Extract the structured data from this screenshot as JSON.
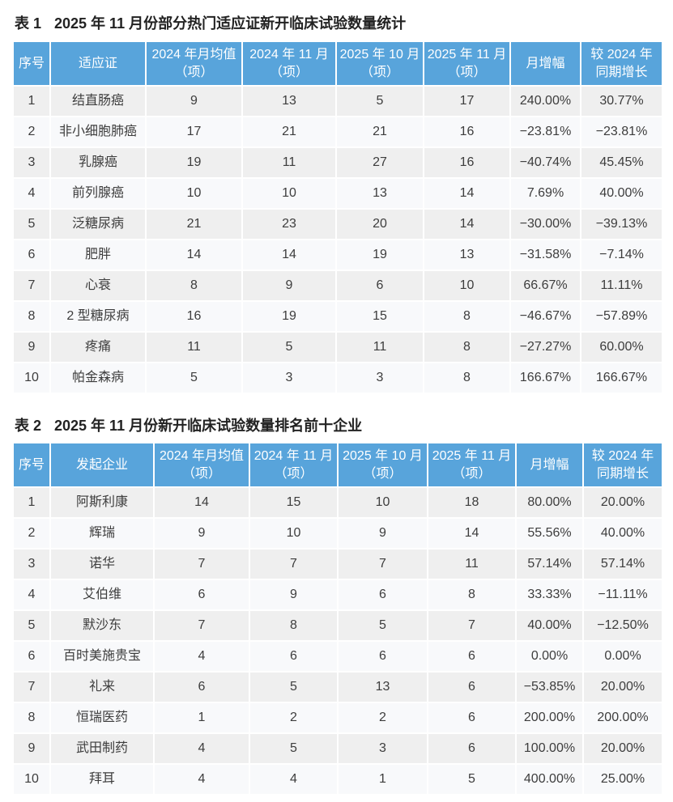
{
  "colors": {
    "header_bg": "#58A4DB",
    "header_text": "#ffffff",
    "row_odd_bg": "#EFEFEF",
    "row_even_bg": "#F8F9FB",
    "body_text": "#3d3d3d",
    "title_text": "#222222",
    "page_bg": "#ffffff"
  },
  "tables": [
    {
      "label": "表 1",
      "title": "2025 年 11 月份部分热门适应证新开临床试验数量统计",
      "columns": [
        {
          "lines": [
            "序号"
          ]
        },
        {
          "lines": [
            "适应证"
          ]
        },
        {
          "lines": [
            "2024 年月均值",
            "（项）"
          ]
        },
        {
          "lines": [
            "2024 年 11 月",
            "（项）"
          ]
        },
        {
          "lines": [
            "2025 年 10 月",
            "（项）"
          ]
        },
        {
          "lines": [
            "2025 年 11 月",
            "（项）"
          ]
        },
        {
          "lines": [
            "月增幅"
          ]
        },
        {
          "lines": [
            "较 2024 年",
            "同期增长"
          ]
        }
      ],
      "rows": [
        [
          "1",
          "结直肠癌",
          "9",
          "13",
          "5",
          "17",
          "240.00%",
          "30.77%"
        ],
        [
          "2",
          "非小细胞肺癌",
          "17",
          "21",
          "21",
          "16",
          "−23.81%",
          "−23.81%"
        ],
        [
          "3",
          "乳腺癌",
          "19",
          "11",
          "27",
          "16",
          "−40.74%",
          "45.45%"
        ],
        [
          "4",
          "前列腺癌",
          "10",
          "10",
          "13",
          "14",
          "7.69%",
          "40.00%"
        ],
        [
          "5",
          "泛糖尿病",
          "21",
          "23",
          "20",
          "14",
          "−30.00%",
          "−39.13%"
        ],
        [
          "6",
          "肥胖",
          "14",
          "14",
          "19",
          "13",
          "−31.58%",
          "−7.14%"
        ],
        [
          "7",
          "心衰",
          "8",
          "9",
          "6",
          "10",
          "66.67%",
          "11.11%"
        ],
        [
          "8",
          "2 型糖尿病",
          "16",
          "19",
          "15",
          "8",
          "−46.67%",
          "−57.89%"
        ],
        [
          "9",
          "疼痛",
          "11",
          "5",
          "11",
          "8",
          "−27.27%",
          "60.00%"
        ],
        [
          "10",
          "帕金森病",
          "5",
          "3",
          "3",
          "8",
          "166.67%",
          "166.67%"
        ]
      ]
    },
    {
      "label": "表 2",
      "title": "2025 年 11 月份新开临床试验数量排名前十企业",
      "columns": [
        {
          "lines": [
            "序号"
          ]
        },
        {
          "lines": [
            "发起企业"
          ]
        },
        {
          "lines": [
            "2024 年月均值",
            "（项）"
          ]
        },
        {
          "lines": [
            "2024 年 11 月",
            "（项）"
          ]
        },
        {
          "lines": [
            "2025 年 10 月",
            "（项）"
          ]
        },
        {
          "lines": [
            "2025 年 11 月",
            "（项）"
          ]
        },
        {
          "lines": [
            "月增幅"
          ]
        },
        {
          "lines": [
            "较 2024 年",
            "同期增长"
          ]
        }
      ],
      "rows": [
        [
          "1",
          "阿斯利康",
          "14",
          "15",
          "10",
          "18",
          "80.00%",
          "20.00%"
        ],
        [
          "2",
          "辉瑞",
          "9",
          "10",
          "9",
          "14",
          "55.56%",
          "40.00%"
        ],
        [
          "3",
          "诺华",
          "7",
          "7",
          "7",
          "11",
          "57.14%",
          "57.14%"
        ],
        [
          "4",
          "艾伯维",
          "6",
          "9",
          "6",
          "8",
          "33.33%",
          "−11.11%"
        ],
        [
          "5",
          "默沙东",
          "7",
          "8",
          "5",
          "7",
          "40.00%",
          "−12.50%"
        ],
        [
          "6",
          "百时美施贵宝",
          "4",
          "6",
          "6",
          "6",
          "0.00%",
          "0.00%"
        ],
        [
          "7",
          "礼来",
          "6",
          "5",
          "13",
          "6",
          "−53.85%",
          "20.00%"
        ],
        [
          "8",
          "恒瑞医药",
          "1",
          "2",
          "2",
          "6",
          "200.00%",
          "200.00%"
        ],
        [
          "9",
          "武田制药",
          "4",
          "5",
          "3",
          "6",
          "100.00%",
          "20.00%"
        ],
        [
          "10",
          "拜耳",
          "4",
          "4",
          "1",
          "5",
          "400.00%",
          "25.00%"
        ]
      ]
    }
  ]
}
